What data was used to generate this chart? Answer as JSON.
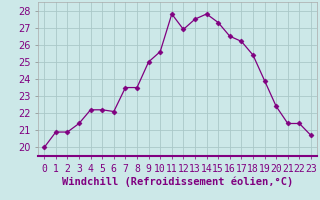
{
  "x": [
    0,
    1,
    2,
    3,
    4,
    5,
    6,
    7,
    8,
    9,
    10,
    11,
    12,
    13,
    14,
    15,
    16,
    17,
    18,
    19,
    20,
    21,
    22,
    23
  ],
  "y": [
    20.0,
    20.9,
    20.9,
    21.4,
    22.2,
    22.2,
    22.1,
    23.5,
    23.5,
    25.0,
    25.6,
    27.8,
    26.9,
    27.5,
    27.8,
    27.3,
    26.5,
    26.2,
    25.4,
    23.9,
    22.4,
    21.4,
    21.4,
    20.7
  ],
  "line_color": "#800080",
  "marker": "D",
  "marker_size": 2.5,
  "bg_color": "#cce8e8",
  "grid_color": "#aac8c8",
  "xlabel": "Windchill (Refroidissement éolien,°C)",
  "xlabel_fontsize": 7.5,
  "xtick_labels": [
    "0",
    "1",
    "2",
    "3",
    "4",
    "5",
    "6",
    "7",
    "8",
    "9",
    "10",
    "11",
    "12",
    "13",
    "14",
    "15",
    "16",
    "17",
    "18",
    "19",
    "20",
    "21",
    "22",
    "23"
  ],
  "ylim": [
    19.5,
    28.5
  ],
  "yticks": [
    20,
    21,
    22,
    23,
    24,
    25,
    26,
    27,
    28
  ],
  "tick_fontsize": 7,
  "label_color": "#800080",
  "spine_color": "#800080"
}
